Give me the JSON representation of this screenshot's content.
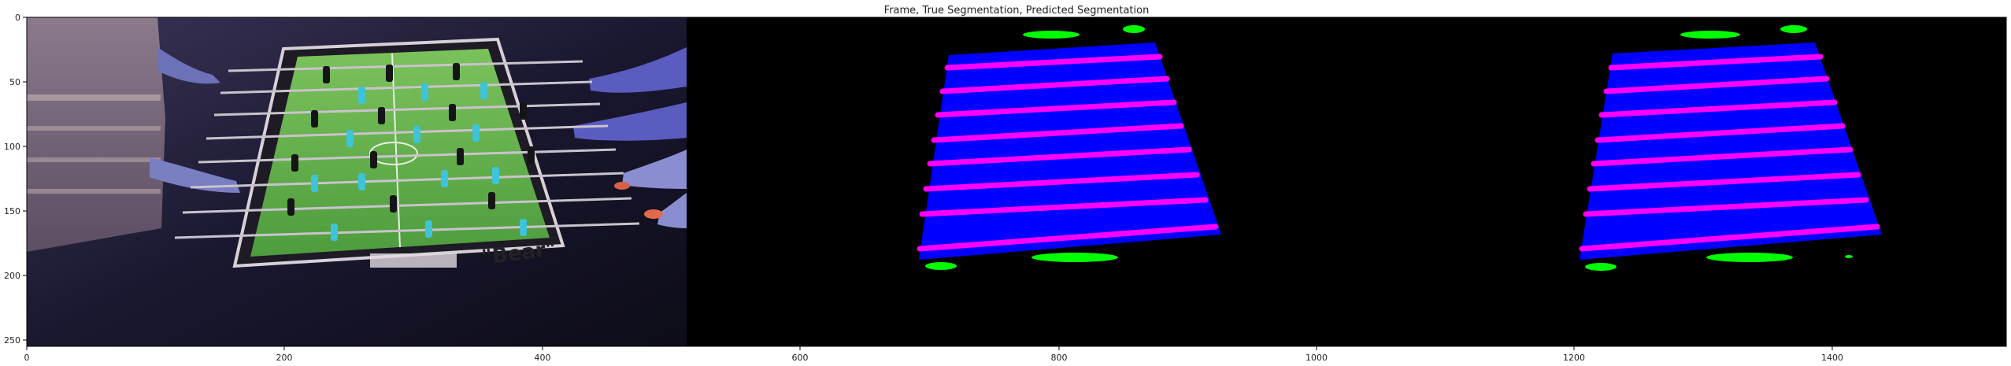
{
  "figure": {
    "title": "Frame, True Segmentation, Predicted Segmentation"
  },
  "axes": {
    "x_ticks": [
      "0",
      "200",
      "400",
      "600",
      "800",
      "1000",
      "1200",
      "1400"
    ],
    "y_ticks": [
      "0",
      "50",
      "100",
      "150",
      "200",
      "250"
    ]
  },
  "frame_panel": {
    "table_logo_text": "\"Bear\""
  },
  "colors": {
    "background": "#000000",
    "table_region": "#0000ff",
    "rod": "#ff00ff",
    "goal": "#00ff00",
    "field_green": "#5fae4a",
    "player_cyan": "#3ec3d8"
  }
}
